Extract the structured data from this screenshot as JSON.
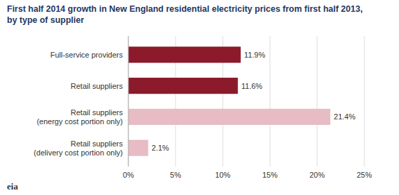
{
  "chart_data": {
    "type": "bar",
    "orientation": "horizontal",
    "title": "First half 2014 growth in New England residential electricity prices from first half 2013,",
    "subtitle": "by type of supplier",
    "categories": [
      "Retail suppliers\n(delivery cost portion only)",
      "Retail suppliers\n(energy cost portion only)",
      "Retail suppliers",
      "Full-service providers"
    ],
    "values": [
      2.1,
      21.4,
      11.6,
      11.9
    ],
    "value_labels": [
      "2.1%",
      "21.4%",
      "11.6%",
      "11.9%"
    ],
    "data_labels": true,
    "colors": [
      "#e8bcc4",
      "#e8bcc4",
      "#8b1a2a",
      "#8b1a2a"
    ],
    "xlim": [
      0,
      25
    ],
    "xticks": [
      {
        "value": 0,
        "label": "0%"
      },
      {
        "value": 5,
        "label": "5%"
      },
      {
        "value": 10,
        "label": "10%"
      },
      {
        "value": 15,
        "label": "15%"
      },
      {
        "value": 20,
        "label": "20%"
      },
      {
        "value": 25,
        "label": "25%"
      }
    ],
    "grid": true,
    "annotations": [
      "eia"
    ]
  }
}
